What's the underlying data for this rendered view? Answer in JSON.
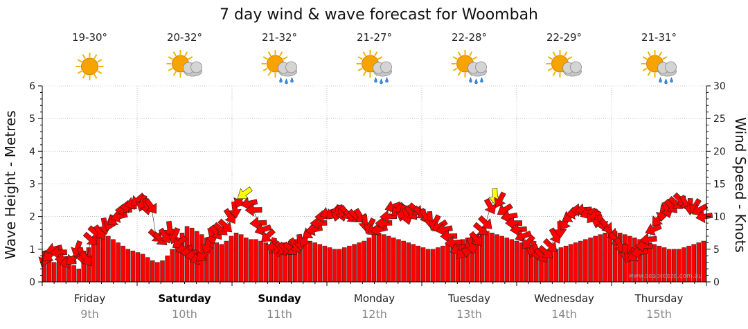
{
  "title": "7 day wind & wave forecast for Woombah",
  "credit": "www.seabreeze.com.au",
  "colors": {
    "wave_bars": "#ff0000",
    "arrow_strong": "#ff0000",
    "arrow_light": "#ffff00",
    "outline": "#222222",
    "axis": "#000000",
    "grid": "#999999"
  },
  "days": [
    {
      "name": "Friday",
      "date": "9th",
      "temp": "19-30°",
      "icon": "sunny-icon",
      "weekend": false
    },
    {
      "name": "Saturday",
      "date": "10th",
      "temp": "20-32°",
      "icon": "partly-cloudy-icon",
      "weekend": true
    },
    {
      "name": "Sunday",
      "date": "11th",
      "temp": "21-32°",
      "icon": "showers-icon",
      "weekend": true
    },
    {
      "name": "Monday",
      "date": "12th",
      "temp": "21-27°",
      "icon": "showers-icon",
      "weekend": false
    },
    {
      "name": "Tuesday",
      "date": "13th",
      "temp": "22-28°",
      "icon": "showers-icon",
      "weekend": false
    },
    {
      "name": "Wednesday",
      "date": "14th",
      "temp": "22-29°",
      "icon": "partly-cloudy-icon",
      "weekend": false
    },
    {
      "name": "Thursday",
      "date": "15th",
      "temp": "21-31°",
      "icon": "showers-icon",
      "weekend": false
    }
  ],
  "chart_data": {
    "type": "bar",
    "ylabel": "Wave Height - Metres",
    "y2label": "Wind Speed - Knots",
    "ylim": [
      0,
      6
    ],
    "y2lim": [
      0,
      30
    ],
    "yticks": [
      "0",
      "1",
      "2",
      "3",
      "4",
      "5",
      "6"
    ],
    "y2ticks": [
      "0",
      "5",
      "10",
      "15",
      "20",
      "25",
      "30"
    ],
    "grid": true,
    "series": [
      {
        "name": "Wave Height - Metres",
        "kind": "bar",
        "values": [
          0.95,
          0.85,
          0.6,
          0.75,
          0.55,
          0.55,
          0.5,
          0.4,
          0.95,
          1.05,
          1.3,
          1.5,
          1.45,
          1.4,
          1.3,
          1.2,
          1.1,
          1.0,
          0.95,
          0.9,
          0.85,
          0.75,
          0.65,
          0.6,
          0.65,
          0.8,
          1.0,
          1.25,
          1.5,
          1.7,
          1.65,
          1.55,
          1.45,
          1.35,
          1.25,
          1.2,
          1.15,
          1.25,
          1.4,
          1.5,
          1.45,
          1.35,
          1.3,
          1.3,
          1.25,
          1.2,
          1.15,
          1.1,
          1.15,
          1.2,
          1.25,
          1.3,
          1.35,
          1.3,
          1.25,
          1.2,
          1.15,
          1.1,
          1.05,
          1.0,
          1.0,
          1.05,
          1.1,
          1.15,
          1.2,
          1.25,
          1.35,
          1.45,
          1.5,
          1.45,
          1.4,
          1.35,
          1.3,
          1.25,
          1.2,
          1.15,
          1.1,
          1.05,
          1.0,
          1.0,
          1.05,
          1.1,
          1.15,
          1.2,
          1.25,
          1.3,
          1.35,
          1.4,
          1.45,
          1.5,
          1.55,
          1.5,
          1.45,
          1.4,
          1.35,
          1.3,
          1.25,
          1.2,
          1.15,
          1.1,
          1.0,
          0.95,
          0.9,
          0.95,
          1.0,
          1.05,
          1.1,
          1.15,
          1.2,
          1.25,
          1.3,
          1.35,
          1.4,
          1.45,
          1.5,
          1.55,
          1.55,
          1.5,
          1.45,
          1.4,
          1.35,
          1.3,
          1.25,
          1.2,
          1.15,
          1.1,
          1.05,
          1.0,
          1.0,
          1.0,
          1.05,
          1.1,
          1.15,
          1.2,
          1.25
        ]
      },
      {
        "name": "Wind Speed - Knots",
        "kind": "arrow",
        "values": [
          3.5,
          4,
          5,
          4.5,
          3.5,
          3,
          3.5,
          5,
          4,
          3.5,
          6.5,
          7.5,
          7.5,
          8.5,
          9,
          9.5,
          10,
          11,
          11.5,
          12,
          12.5,
          12,
          11.5,
          11.5,
          7,
          6.5,
          7,
          8,
          7,
          6,
          5,
          4.5,
          4,
          3.5,
          4,
          5.5,
          7,
          7.5,
          8,
          8.5,
          10,
          11,
          12.5,
          13.5,
          12,
          11,
          9,
          8,
          7,
          5.5,
          5,
          5,
          5,
          5,
          5.5,
          6,
          6.5,
          7.5,
          8,
          9,
          10,
          10.5,
          10.5,
          10.5,
          10.5,
          10.5,
          10,
          10,
          10,
          9,
          8.5,
          8,
          8,
          9,
          10,
          11.5,
          11,
          10.5,
          10,
          10.5,
          11,
          10.5,
          10,
          9.5,
          9,
          8.5,
          8,
          7,
          6,
          5,
          4.5,
          5,
          5.5,
          6.5,
          8,
          9,
          11.5,
          13,
          12.5,
          11,
          10,
          9,
          8,
          7,
          6,
          5,
          4.5,
          4,
          4.5,
          5.5,
          7,
          8,
          9,
          10,
          10.5,
          11,
          11,
          10.5,
          10,
          9.5,
          9,
          8.5,
          7.5,
          6.5,
          5.5,
          4.5,
          4,
          4,
          4.5,
          5.5,
          6.5,
          8,
          9.5,
          10.5,
          11,
          11.5,
          12,
          12.5,
          12,
          11.5,
          11.5,
          11,
          10
        ]
      }
    ]
  }
}
